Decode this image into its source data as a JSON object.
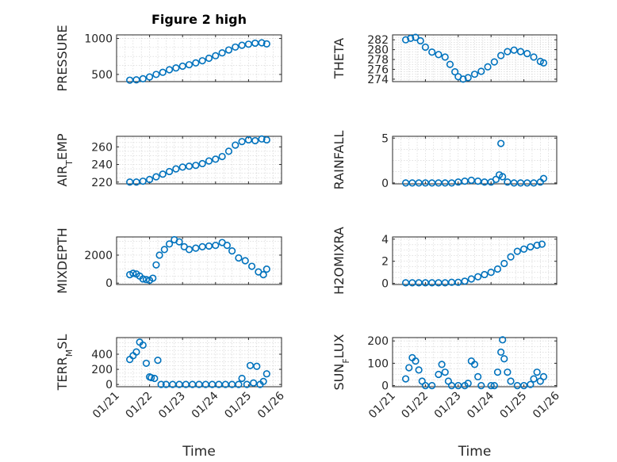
{
  "figure_title": "Figure 2 high",
  "colors": {
    "marker": "#0072bd",
    "axes": "#262626",
    "grid": "#d0d0d0"
  },
  "chart_data": [
    {
      "type": "scatter",
      "title": "Figure 2 high",
      "ylabel": "PRESSURE",
      "ylabel_sub": "",
      "xlim": [
        "01/21",
        "01/26"
      ],
      "ylim": [
        400,
        1050
      ],
      "yticks": [
        500,
        1000
      ],
      "ytick_labels": [
        "500",
        "1000"
      ],
      "xticks": [
        "01/21",
        "01/22",
        "01/23",
        "01/24",
        "01/25",
        "01/26"
      ],
      "xtick_labels_visible": false,
      "xlabel": "",
      "grid": true,
      "x": [
        21.4,
        21.6,
        21.8,
        22.0,
        22.2,
        22.4,
        22.6,
        22.8,
        23.0,
        23.2,
        23.4,
        23.6,
        23.8,
        24.0,
        24.2,
        24.4,
        24.6,
        24.8,
        25.0,
        25.2,
        25.4,
        25.55
      ],
      "y": [
        420,
        425,
        440,
        465,
        500,
        530,
        565,
        590,
        615,
        635,
        660,
        690,
        725,
        760,
        800,
        840,
        880,
        905,
        920,
        935,
        940,
        925
      ]
    },
    {
      "type": "scatter",
      "ylabel": "THETA",
      "ylabel_sub": "",
      "xlim": [
        "01/21",
        "01/26"
      ],
      "ylim": [
        273.5,
        283
      ],
      "yticks": [
        274,
        276,
        278,
        280,
        282
      ],
      "ytick_labels": [
        "274",
        "276",
        "278",
        "280",
        "282"
      ],
      "xticks": [
        "01/21",
        "01/22",
        "01/23",
        "01/24",
        "01/25",
        "01/26"
      ],
      "xtick_labels_visible": false,
      "xlabel": "",
      "grid": true,
      "x": [
        21.4,
        21.55,
        21.7,
        21.85,
        22.0,
        22.2,
        22.4,
        22.6,
        22.75,
        22.9,
        23.0,
        23.15,
        23.3,
        23.5,
        23.7,
        23.9,
        24.1,
        24.3,
        24.5,
        24.7,
        24.9,
        25.1,
        25.3,
        25.5,
        25.6
      ],
      "y": [
        282,
        282.3,
        282.5,
        281.8,
        280.5,
        279.5,
        279,
        278.5,
        277,
        275.5,
        274.5,
        274,
        274.3,
        275,
        275.6,
        276.5,
        277.5,
        278.8,
        279.6,
        279.9,
        279.6,
        279.2,
        278.5,
        277.6,
        277.3
      ]
    },
    {
      "type": "scatter",
      "ylabel": "AIR",
      "ylabel_sub": "T",
      "ylabel_tail": "EMP",
      "xlim": [
        "01/21",
        "01/26"
      ],
      "ylim": [
        218,
        272
      ],
      "yticks": [
        220,
        240,
        260
      ],
      "ytick_labels": [
        "220",
        "240",
        "260"
      ],
      "xticks": [
        "01/21",
        "01/22",
        "01/23",
        "01/24",
        "01/25",
        "01/26"
      ],
      "xtick_labels_visible": false,
      "xlabel": "",
      "grid": true,
      "x": [
        21.4,
        21.6,
        21.8,
        22.0,
        22.2,
        22.4,
        22.6,
        22.8,
        23.0,
        23.2,
        23.4,
        23.6,
        23.8,
        24.0,
        24.2,
        24.4,
        24.6,
        24.8,
        25.0,
        25.2,
        25.4,
        25.55
      ],
      "y": [
        220,
        220,
        221,
        223,
        226,
        229,
        232,
        235,
        237,
        238,
        239,
        241,
        244,
        246,
        249,
        255,
        262,
        266,
        268,
        267,
        269,
        268
      ]
    },
    {
      "type": "scatter",
      "ylabel": "RAINFALL",
      "ylabel_sub": "",
      "xlim": [
        "01/21",
        "01/26"
      ],
      "ylim": [
        -0.1,
        5.2
      ],
      "yticks": [
        0,
        5
      ],
      "ytick_labels": [
        "0",
        "5"
      ],
      "xticks": [
        "01/21",
        "01/22",
        "01/23",
        "01/24",
        "01/25",
        "01/26"
      ],
      "xtick_labels_visible": false,
      "xlabel": "",
      "grid": true,
      "x": [
        21.4,
        21.6,
        21.8,
        22.0,
        22.2,
        22.4,
        22.6,
        22.8,
        23.0,
        23.2,
        23.4,
        23.6,
        23.8,
        24.0,
        24.15,
        24.25,
        24.3,
        24.35,
        24.5,
        24.7,
        24.9,
        25.1,
        25.3,
        25.5,
        25.6
      ],
      "y": [
        0,
        0,
        0,
        0,
        0,
        0,
        0,
        0,
        0.1,
        0.2,
        0.3,
        0.2,
        0.1,
        0.1,
        0.4,
        0.9,
        4.4,
        0.7,
        0.1,
        0,
        0,
        0,
        0,
        0.1,
        0.5
      ]
    },
    {
      "type": "scatter",
      "ylabel": "MIXDEPTH",
      "ylabel_sub": "",
      "xlim": [
        "01/21",
        "01/26"
      ],
      "ylim": [
        -100,
        3300
      ],
      "yticks": [
        0,
        2000
      ],
      "ytick_labels": [
        "0",
        "2000"
      ],
      "xticks": [
        "01/21",
        "01/22",
        "01/23",
        "01/24",
        "01/25",
        "01/26"
      ],
      "xtick_labels_visible": false,
      "xlabel": "",
      "grid": true,
      "x": [
        21.4,
        21.5,
        21.6,
        21.7,
        21.8,
        21.9,
        22.0,
        22.1,
        22.2,
        22.3,
        22.45,
        22.6,
        22.75,
        22.9,
        23.05,
        23.2,
        23.4,
        23.6,
        23.8,
        24.0,
        24.2,
        24.35,
        24.5,
        24.7,
        24.9,
        25.1,
        25.3,
        25.45,
        25.55
      ],
      "y": [
        600,
        700,
        650,
        500,
        300,
        250,
        200,
        350,
        1300,
        2000,
        2400,
        2800,
        3100,
        2950,
        2600,
        2400,
        2500,
        2600,
        2650,
        2700,
        2900,
        2700,
        2300,
        1800,
        1600,
        1200,
        800,
        600,
        1000
      ]
    },
    {
      "type": "scatter",
      "ylabel": "H2OMIXRA",
      "ylabel_sub": "",
      "xlim": [
        "01/21",
        "01/26"
      ],
      "ylim": [
        -0.1,
        4.2
      ],
      "yticks": [
        0,
        2,
        4
      ],
      "ytick_labels": [
        "0",
        "2",
        "4"
      ],
      "xticks": [
        "01/21",
        "01/22",
        "01/23",
        "01/24",
        "01/25",
        "01/26"
      ],
      "xtick_labels_visible": false,
      "xlabel": "",
      "grid": true,
      "x": [
        21.4,
        21.6,
        21.8,
        22.0,
        22.2,
        22.4,
        22.6,
        22.8,
        23.0,
        23.2,
        23.4,
        23.6,
        23.8,
        24.0,
        24.2,
        24.4,
        24.6,
        24.8,
        25.0,
        25.2,
        25.4,
        25.55
      ],
      "y": [
        0.05,
        0.05,
        0.05,
        0.05,
        0.05,
        0.05,
        0.05,
        0.1,
        0.1,
        0.2,
        0.4,
        0.6,
        0.8,
        1.0,
        1.3,
        1.8,
        2.4,
        2.9,
        3.1,
        3.3,
        3.45,
        3.55
      ]
    },
    {
      "type": "scatter",
      "ylabel": "TERR",
      "ylabel_sub": "M",
      "ylabel_tail": "SL",
      "xlim": [
        "01/21",
        "01/26"
      ],
      "ylim": [
        -30,
        620
      ],
      "yticks": [
        0,
        200,
        400
      ],
      "ytick_labels": [
        "0",
        "200",
        "400"
      ],
      "xticks": [
        "01/21",
        "01/22",
        "01/23",
        "01/24",
        "01/25",
        "01/26"
      ],
      "xtick_labels": [
        "01/21",
        "01/22",
        "01/23",
        "01/24",
        "01/25",
        "01/26"
      ],
      "xtick_labels_visible": true,
      "xlabel": "Time",
      "grid": true,
      "x": [
        21.4,
        21.5,
        21.6,
        21.7,
        21.8,
        21.9,
        22.0,
        22.05,
        22.15,
        22.25,
        22.35,
        22.5,
        22.7,
        22.9,
        23.1,
        23.3,
        23.5,
        23.7,
        23.9,
        24.1,
        24.3,
        24.5,
        24.7,
        24.8,
        24.95,
        25.05,
        25.15,
        25.25,
        25.35,
        25.45,
        25.55
      ],
      "y": [
        330,
        380,
        430,
        560,
        520,
        280,
        100,
        90,
        80,
        320,
        0,
        0,
        0,
        0,
        0,
        0,
        0,
        0,
        0,
        0,
        0,
        0,
        0,
        80,
        0,
        250,
        20,
        240,
        0,
        40,
        140
      ]
    },
    {
      "type": "scatter",
      "ylabel": "SUN",
      "ylabel_sub": "F",
      "ylabel_tail": "LUX",
      "xlim": [
        "01/21",
        "01/26"
      ],
      "ylim": [
        -5,
        215
      ],
      "yticks": [
        0,
        100,
        200
      ],
      "ytick_labels": [
        "0",
        "100",
        "200"
      ],
      "xticks": [
        "01/21",
        "01/22",
        "01/23",
        "01/24",
        "01/25",
        "01/26"
      ],
      "xtick_labels": [
        "01/21",
        "01/22",
        "01/23",
        "01/24",
        "01/25",
        "01/26"
      ],
      "xtick_labels_visible": true,
      "xlabel": "Time",
      "grid": true,
      "x": [
        21.4,
        21.5,
        21.6,
        21.7,
        21.8,
        21.9,
        22.0,
        22.2,
        22.4,
        22.5,
        22.6,
        22.7,
        22.8,
        23.0,
        23.2,
        23.3,
        23.4,
        23.5,
        23.6,
        23.7,
        24.0,
        24.1,
        24.2,
        24.3,
        24.35,
        24.4,
        24.5,
        24.6,
        24.8,
        25.0,
        25.2,
        25.3,
        25.4,
        25.5,
        25.6
      ],
      "y": [
        30,
        80,
        125,
        110,
        70,
        20,
        0,
        0,
        50,
        95,
        60,
        20,
        0,
        0,
        0,
        10,
        110,
        95,
        40,
        0,
        0,
        0,
        60,
        150,
        205,
        120,
        60,
        20,
        0,
        0,
        5,
        30,
        60,
        20,
        40
      ]
    }
  ]
}
